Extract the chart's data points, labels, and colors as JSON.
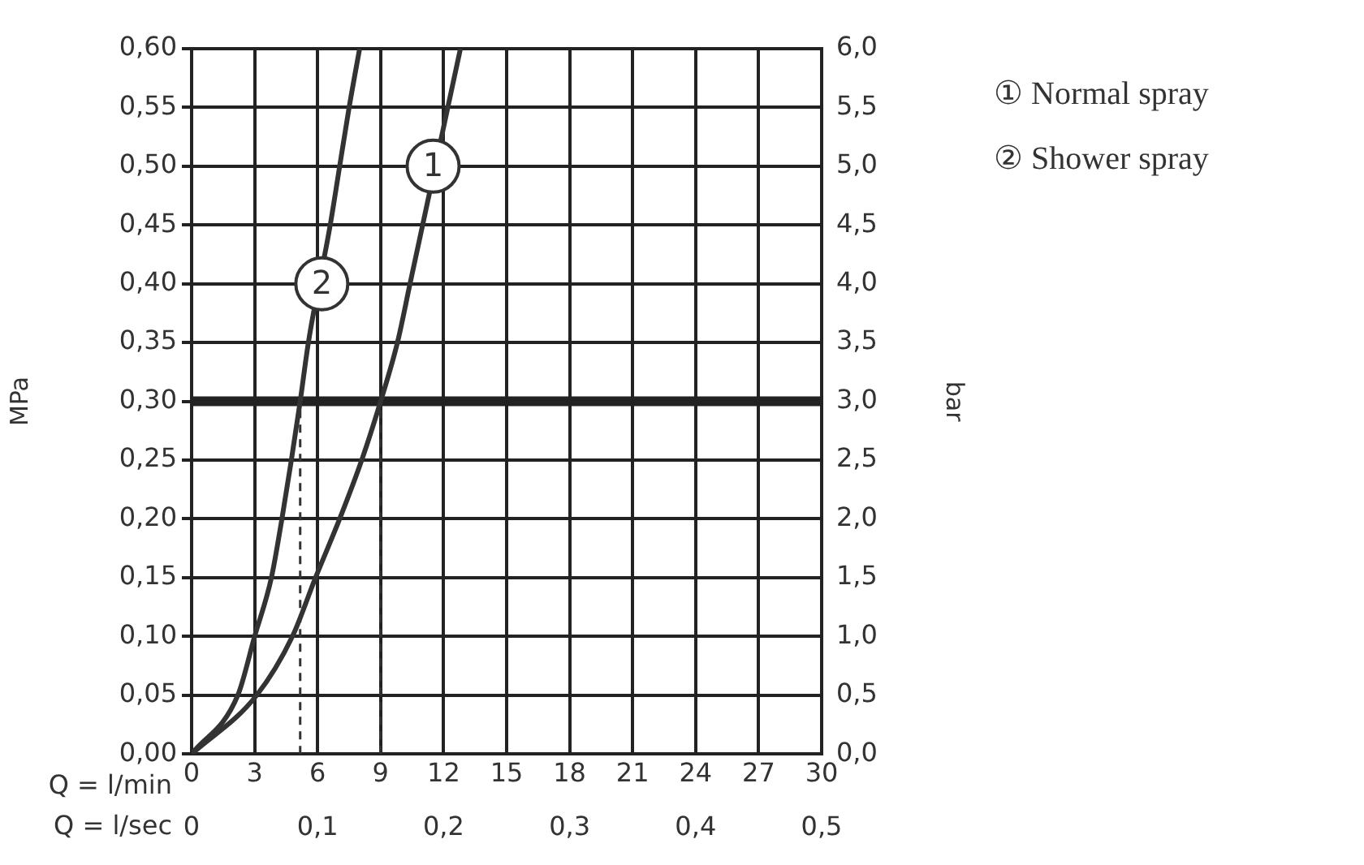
{
  "chart_data": {
    "type": "line",
    "xlabel": "Q = l/min",
    "x2label": "Q = l/sec",
    "ylabel": "MPa",
    "y2label": "bar",
    "xlim": [
      0,
      30
    ],
    "xticks": [
      0,
      3,
      6,
      9,
      12,
      15,
      18,
      21,
      24,
      27,
      30
    ],
    "x2lim": [
      0,
      0.5
    ],
    "x2ticks": [
      0,
      {
        "value": 0.1,
        "label": "0,1"
      },
      {
        "value": 0.2,
        "label": "0,2"
      },
      {
        "value": 0.3,
        "label": "0,3"
      },
      {
        "value": 0.4,
        "label": "0,4"
      },
      {
        "value": 0.5,
        "label": "0,5"
      }
    ],
    "ylim": [
      0,
      0.6
    ],
    "yticks": [
      {
        "value": 0,
        "label": "0,00"
      },
      {
        "value": 0.05,
        "label": "0,05"
      },
      {
        "value": 0.1,
        "label": "0,10"
      },
      {
        "value": 0.15,
        "label": "0,15"
      },
      {
        "value": 0.2,
        "label": "0,20"
      },
      {
        "value": 0.25,
        "label": "0,25"
      },
      {
        "value": 0.3,
        "label": "0,30"
      },
      {
        "value": 0.35,
        "label": "0,35"
      },
      {
        "value": 0.4,
        "label": "0,40"
      },
      {
        "value": 0.45,
        "label": "0,45"
      },
      {
        "value": 0.5,
        "label": "0,50"
      },
      {
        "value": 0.55,
        "label": "0,55"
      },
      {
        "value": 0.6,
        "label": "0,60"
      }
    ],
    "y2lim": [
      0,
      6
    ],
    "y2ticks": [
      {
        "value": 0,
        "label": "0,0"
      },
      {
        "value": 0.5,
        "label": "0,5"
      },
      {
        "value": 1,
        "label": "1,0"
      },
      {
        "value": 1.5,
        "label": "1,5"
      },
      {
        "value": 2,
        "label": "2,0"
      },
      {
        "value": 2.5,
        "label": "2,5"
      },
      {
        "value": 3,
        "label": "3,0"
      },
      {
        "value": 3.5,
        "label": "3,5"
      },
      {
        "value": 4,
        "label": "4,0"
      },
      {
        "value": 4.5,
        "label": "4,5"
      },
      {
        "value": 5,
        "label": "5,0"
      },
      {
        "value": 5.5,
        "label": "5,5"
      },
      {
        "value": 6,
        "label": "6,0"
      }
    ],
    "grid": true,
    "legend": "top right",
    "marker": "none",
    "line_style": "solid",
    "series": [
      {
        "name": "① Normal spray",
        "color": "#333333",
        "x": [
          0,
          3.1,
          4.8,
          5.9,
          7.05,
          8.1,
          9,
          9.8,
          10.4,
          11,
          12.2,
          12.8
        ],
        "values": [
          0,
          0.05,
          0.1,
          0.15,
          0.2,
          0.25,
          0.3,
          0.35,
          0.4,
          0.45,
          0.55,
          0.6
        ]
      },
      {
        "name": "② Shower spray",
        "color": "#333333",
        "x": [
          0,
          2.2,
          3,
          3.8,
          4.3,
          4.75,
          5.17,
          5.56,
          6.6,
          7.05,
          7.5,
          8
        ],
        "values": [
          0,
          0.05,
          0.1,
          0.15,
          0.2,
          0.25,
          0.3,
          0.35,
          0.45,
          0.5,
          0.55,
          0.6
        ]
      }
    ],
    "ref_lines": [
      {
        "axis": "y",
        "value": 0.3,
        "color": "#222222",
        "line_style": "solid"
      },
      {
        "axis": "x",
        "value": 5.17,
        "color": "#333333",
        "line_style": "dashed"
      },
      {
        "axis": "x",
        "value": 9,
        "color": "#333333",
        "line_style": "dashed"
      }
    ],
    "annotations": [
      {
        "text": "1",
        "x": 11.5,
        "y": 0.5
      },
      {
        "text": "2",
        "x": 6.2,
        "y": 0.4
      }
    ]
  }
}
